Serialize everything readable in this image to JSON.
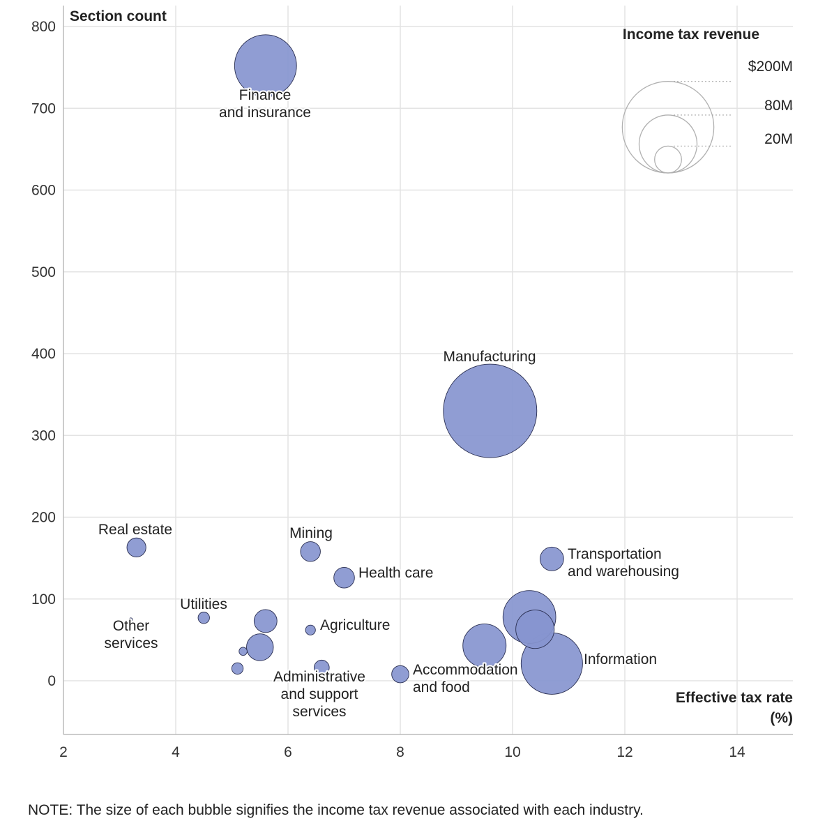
{
  "chart_data": {
    "type": "bubble",
    "ylabel": "Section count",
    "xlabel": "Effective tax rate (%)",
    "xlabel_line1": "Effective tax rate",
    "xlabel_line2": "(%)",
    "xlim": [
      2,
      15
    ],
    "ylim": [
      -65,
      800
    ],
    "xticks": [
      2,
      4,
      6,
      8,
      10,
      12,
      14
    ],
    "yticks": [
      0,
      100,
      200,
      300,
      400,
      500,
      600,
      700,
      800
    ],
    "grid": true,
    "bubble_color": "#8795cf",
    "bubble_stroke": "#2a2f52",
    "size_legend": {
      "title": "Income tax revenue",
      "entries": [
        {
          "label": "$200M",
          "value": 200
        },
        {
          "label": "80M",
          "value": 80
        },
        {
          "label": "20M",
          "value": 20
        }
      ]
    },
    "points": [
      {
        "name": "Finance and insurance",
        "label_lines": [
          "Finance",
          "and insurance"
        ],
        "x": 5.6,
        "y": 752,
        "revenue": 117
      },
      {
        "name": "Manufacturing",
        "label_lines": [
          "Manufacturing"
        ],
        "x": 9.6,
        "y": 330,
        "revenue": 266
      },
      {
        "name": "Real estate",
        "label_lines": [
          "Real estate"
        ],
        "x": 3.3,
        "y": 163,
        "revenue": 11
      },
      {
        "name": "Mining",
        "label_lines": [
          "Mining"
        ],
        "x": 6.4,
        "y": 158,
        "revenue": 12
      },
      {
        "name": "Health care",
        "label_lines": [
          "Health care"
        ],
        "x": 7.0,
        "y": 126,
        "revenue": 13
      },
      {
        "name": "Transportation and warehousing",
        "label_lines": [
          "Transportation",
          "and warehousing"
        ],
        "x": 10.7,
        "y": 149,
        "revenue": 17
      },
      {
        "name": "Utilities",
        "label_lines": [
          "Utilities"
        ],
        "x": 4.5,
        "y": 77,
        "revenue": 4
      },
      {
        "name": "Other services",
        "label_lines": [
          "Other",
          "services"
        ],
        "x": 3.2,
        "y": 75,
        "revenue": 0.3
      },
      {
        "name": "Agriculture",
        "label_lines": [
          "Agriculture"
        ],
        "x": 6.4,
        "y": 62,
        "revenue": 3
      },
      {
        "name": "Administrative and support services",
        "label_lines": [
          "Administrative",
          "and support",
          "services"
        ],
        "x": 6.6,
        "y": 16,
        "revenue": 7
      },
      {
        "name": "Accommodation and food",
        "label_lines": [
          "Accommodation",
          "and food"
        ],
        "x": 8.0,
        "y": 8,
        "revenue": 9
      },
      {
        "name": "Information",
        "label_lines": [
          "Information"
        ],
        "x": 10.7,
        "y": 21,
        "revenue": 115
      },
      {
        "name": "Unlabeled 1",
        "label_lines": [],
        "x": 5.6,
        "y": 73,
        "revenue": 16
      },
      {
        "name": "Unlabeled 2",
        "label_lines": [],
        "x": 5.5,
        "y": 41,
        "revenue": 22
      },
      {
        "name": "Unlabeled 3",
        "label_lines": [],
        "x": 5.2,
        "y": 36,
        "revenue": 2
      },
      {
        "name": "Unlabeled 4",
        "label_lines": [],
        "x": 5.1,
        "y": 15,
        "revenue": 4
      },
      {
        "name": "Unlabeled 5",
        "label_lines": [],
        "x": 9.5,
        "y": 43,
        "revenue": 57
      },
      {
        "name": "Unlabeled 6",
        "label_lines": [],
        "x": 10.3,
        "y": 78,
        "revenue": 85
      },
      {
        "name": "Unlabeled 7",
        "label_lines": [],
        "x": 10.4,
        "y": 63,
        "revenue": 45
      }
    ]
  },
  "note": "NOTE: The size of each bubble signifies the income tax revenue associated with each industry."
}
